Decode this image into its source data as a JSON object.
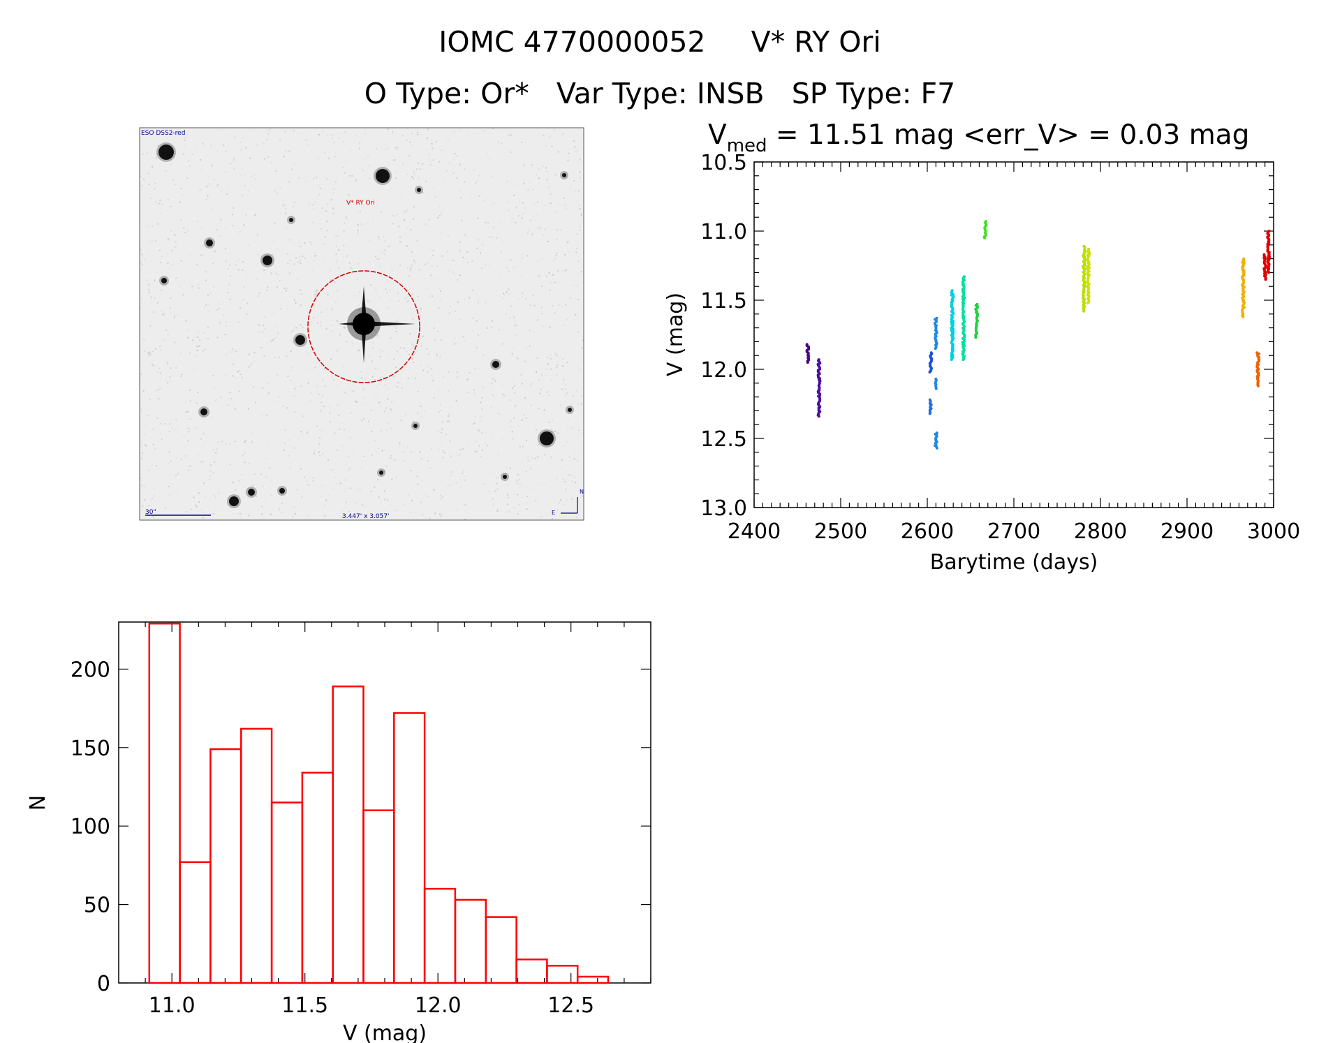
{
  "header": {
    "line1": "IOMC 4770000052     V* RY Ori",
    "line2": "O Type: Or*   Var Type: INSB   SP Type: F7"
  },
  "sky_image": {
    "survey_label": "ESO DSS2-red",
    "target_label": "V* RY Ori",
    "scale_label": "30\"",
    "fov_label": "3.447' x 3.057'",
    "north_label": "N",
    "east_label": "E",
    "circle_color": "#cc0000",
    "label_color": "#00008b"
  },
  "light_curve_stats": {
    "v_symbol": "V",
    "v_subscript": "med",
    "rest": " = 11.51 mag <err_V> = 0.03 mag"
  },
  "chart_data": [
    {
      "type": "scatter",
      "xlabel": "Barytime (days)",
      "ylabel": "V (mag)",
      "xlim": [
        2400,
        3000
      ],
      "ylim": [
        13.0,
        10.5
      ],
      "y_inverted": true,
      "xticks": [
        "2400",
        "2500",
        "2600",
        "2700",
        "2800",
        "2900",
        "3000"
      ],
      "yticks": [
        "10.5",
        "11.0",
        "11.5",
        "12.0",
        "12.5",
        "13.0"
      ],
      "grid": false,
      "color_scale": "rainbow by time (purple to red)",
      "groups": [
        {
          "x": 2462,
          "y": [
            11.82,
            11.95
          ],
          "color": "#4b0082"
        },
        {
          "x": 2475,
          "y": [
            11.93,
            12.34
          ],
          "color": "#4b0fa0"
        },
        {
          "x": 2604,
          "y": [
            11.88,
            12.02
          ],
          "color": "#1e50d8"
        },
        {
          "x": 2604,
          "y": [
            12.22,
            12.32
          ],
          "color": "#1e6ee6"
        },
        {
          "x": 2610,
          "y": [
            11.63,
            11.85
          ],
          "color": "#1e88e5"
        },
        {
          "x": 2610,
          "y": [
            12.07,
            12.14
          ],
          "color": "#1e88e5"
        },
        {
          "x": 2610,
          "y": [
            12.46,
            12.57
          ],
          "color": "#1e88e5"
        },
        {
          "x": 2629,
          "y": [
            11.43,
            11.93
          ],
          "color": "#00d0e0"
        },
        {
          "x": 2642,
          "y": [
            11.33,
            11.93
          ],
          "color": "#00e0a0"
        },
        {
          "x": 2657,
          "y": [
            11.53,
            11.77
          ],
          "color": "#20d040"
        },
        {
          "x": 2667,
          "y": [
            10.93,
            11.05
          ],
          "color": "#40e020"
        },
        {
          "x": 2781,
          "y": [
            11.11,
            11.58
          ],
          "color": "#b8e000"
        },
        {
          "x": 2786,
          "y": [
            11.13,
            11.52
          ],
          "color": "#d0e000"
        },
        {
          "x": 2965,
          "y": [
            11.2,
            11.62
          ],
          "color": "#f0b000"
        },
        {
          "x": 2982,
          "y": [
            11.88,
            12.12
          ],
          "color": "#f06000"
        },
        {
          "x": 2990,
          "y": [
            11.17,
            11.35
          ],
          "color": "#e00000"
        },
        {
          "x": 2994,
          "y": [
            11.0,
            11.3
          ],
          "color": "#e00000"
        }
      ]
    },
    {
      "type": "bar",
      "style": "step histogram",
      "xlabel": "V (mag)",
      "ylabel": "N",
      "xlim": [
        10.8,
        12.8
      ],
      "ylim": [
        0,
        230
      ],
      "xticks": [
        "11.0",
        "11.5",
        "12.0",
        "12.5"
      ],
      "yticks": [
        "0",
        "50",
        "100",
        "150",
        "200"
      ],
      "bin_edges": [
        10.915,
        11.03,
        11.145,
        11.26,
        11.375,
        11.49,
        11.605,
        11.72,
        11.835,
        11.95,
        12.065,
        12.18,
        12.295,
        12.41,
        12.525,
        12.64
      ],
      "values": [
        229,
        77,
        149,
        162,
        115,
        134,
        189,
        110,
        172,
        60,
        53,
        42,
        15,
        11,
        4
      ],
      "color": "#ff0000"
    }
  ]
}
